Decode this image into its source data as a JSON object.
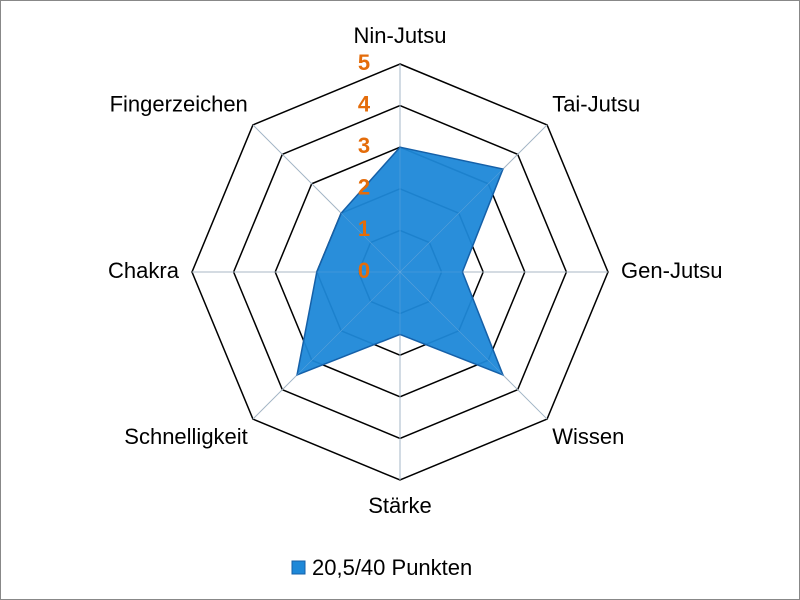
{
  "chart_data": {
    "type": "radar",
    "categories": [
      "Nin-Jutsu",
      "Tai-Jutsu",
      "Gen-Jutsu",
      "Wissen",
      "Stärke",
      "Schnelligkeit",
      "Chakra",
      "Fingerzeichen"
    ],
    "series": [
      {
        "name": "20,5/40 Punkten",
        "color": "#1e88d8",
        "values": [
          3,
          3.5,
          1.5,
          3.5,
          1.5,
          3.5,
          2,
          2
        ]
      }
    ],
    "ylim": [
      0,
      5
    ],
    "yticks": [
      0,
      1,
      2,
      3,
      4,
      5
    ],
    "tick_color": "#e46c0a",
    "grid": true,
    "legend": "bottom"
  }
}
